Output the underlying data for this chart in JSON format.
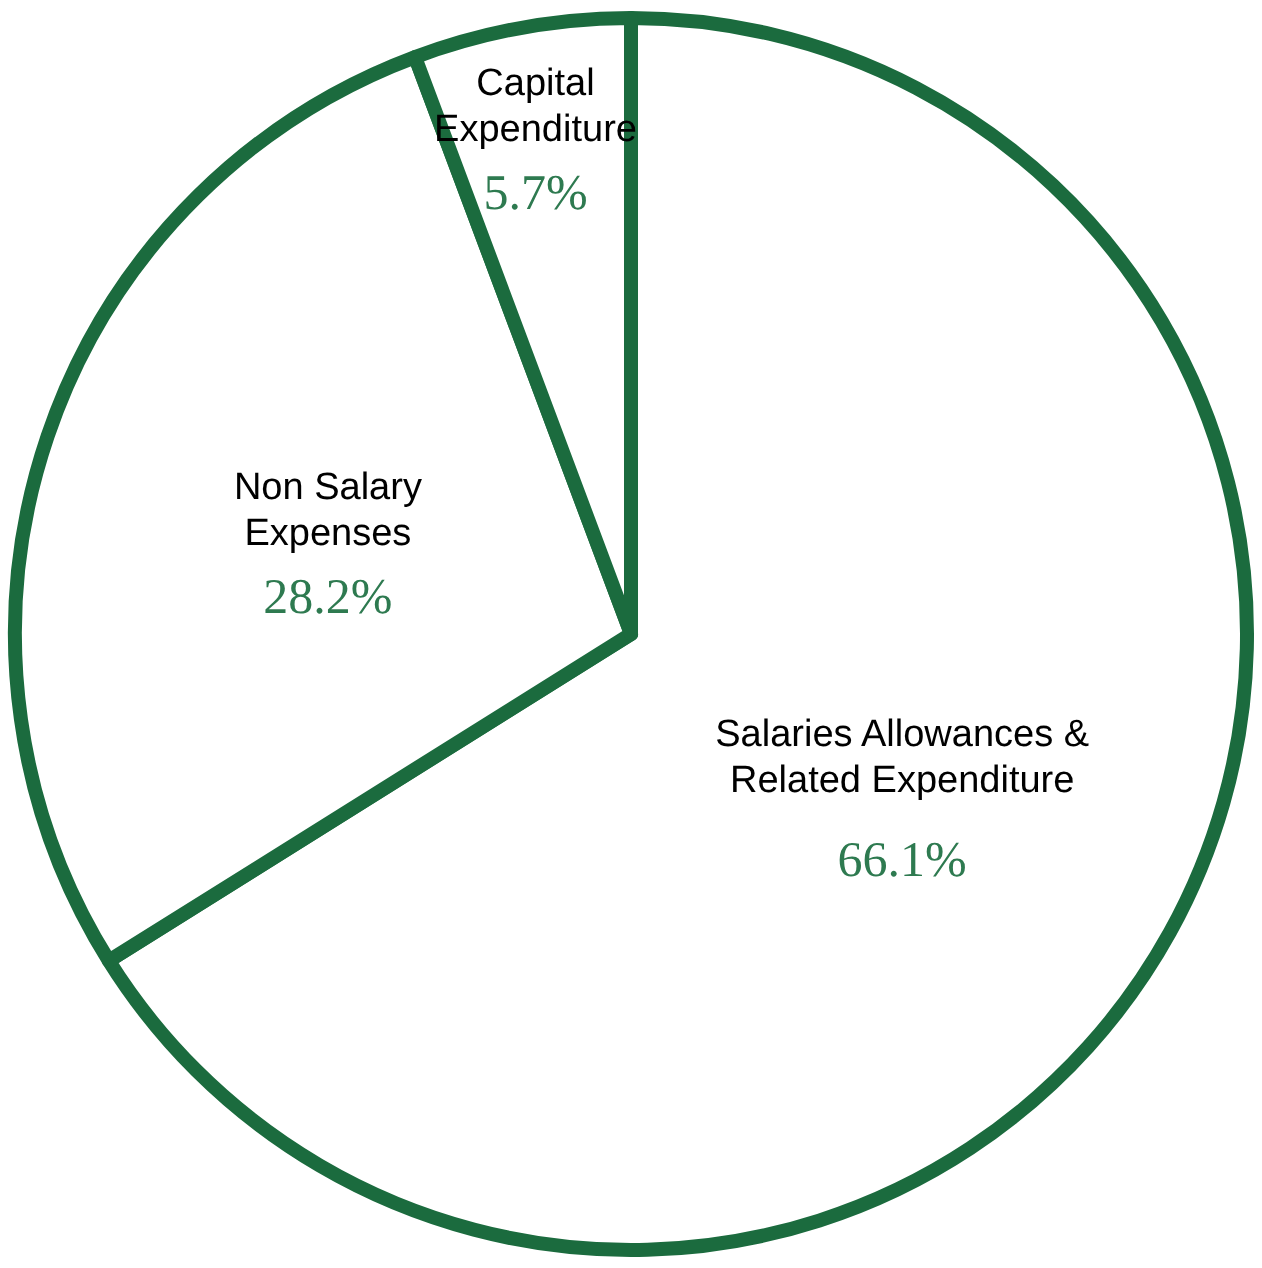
{
  "chart_data": {
    "type": "pie",
    "categories": [
      "Salaries Allowances &\nRelated Expenditure",
      "Non Salary\nExpenses",
      "Capital\nExpenditure"
    ],
    "values": [
      66.1,
      28.2,
      5.7
    ],
    "value_labels": [
      "66.1%",
      "28.2%",
      "5.7%"
    ],
    "colors": [
      "#ffffff",
      "#ffffff",
      "#ffffff"
    ]
  }
}
